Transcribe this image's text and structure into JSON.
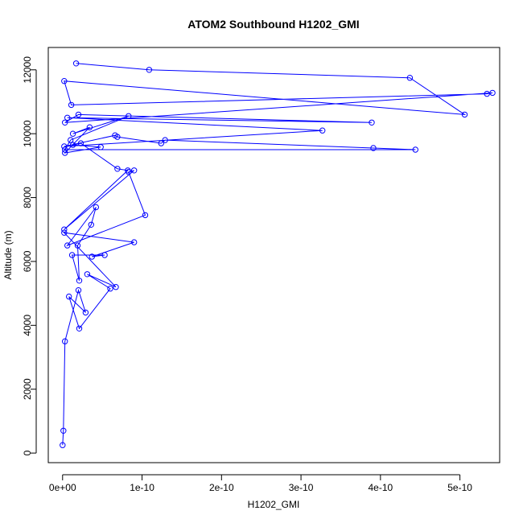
{
  "chart_data": {
    "type": "line",
    "title": "ATOM2 Southbound H1202_GMI",
    "xlabel": "H1202_GMI",
    "ylabel": "Altitude (m)",
    "xlim": [
      -1.8e-11,
      5.5e-10
    ],
    "ylim": [
      -300,
      12700
    ],
    "x_ticks": [
      0,
      1e-10,
      2e-10,
      3e-10,
      4e-10,
      5e-10
    ],
    "x_tick_labels": [
      "0e+00",
      "1e-10",
      "2e-10",
      "3e-10",
      "4e-10",
      "5e-10"
    ],
    "y_ticks": [
      0,
      2000,
      4000,
      6000,
      8000,
      10000,
      12000
    ],
    "y_tick_labels": [
      "0",
      "2000",
      "4000",
      "6000",
      "8000",
      "10000",
      "12000"
    ],
    "grid": false,
    "series": [
      {
        "color": "#0000ff",
        "markers": "open-circle",
        "x": [
          1.7e-11,
          1.09e-10,
          4.37e-10,
          5.06e-10,
          2e-12,
          1.1e-11,
          5.34e-10,
          5.41e-10,
          3e-12,
          2e-11,
          3.89e-10,
          6e-12,
          3.27e-10,
          2e-12,
          6.6e-11,
          6.9e-11,
          1.24e-10,
          1.29e-10,
          3.91e-10,
          4.44e-10,
          3e-12,
          1e-11,
          8.3e-11,
          1.3e-11,
          3.4e-11,
          3e-12,
          4.8e-11,
          1.3e-11,
          2.3e-11,
          6.9e-11,
          8.2e-11,
          2e-12,
          9e-11,
          8.3e-11,
          1.04e-10,
          6e-12,
          4.2e-11,
          3.6e-11,
          1.9e-11,
          2.1e-11,
          1.2e-11,
          5.3e-11,
          3.7e-11,
          9e-11,
          2e-12,
          6.7e-11,
          3.1e-11,
          6e-11,
          2.1e-11,
          8e-12,
          2.9e-11,
          2e-11,
          3e-12,
          1e-12,
          0.0
        ],
        "y": [
          12200,
          12000,
          11750,
          10600,
          11650,
          10900,
          11250,
          11280,
          10350,
          10600,
          10350,
          10500,
          10100,
          9600,
          9950,
          9900,
          9700,
          9800,
          9550,
          9500,
          9500,
          9800,
          10550,
          10000,
          10200,
          9400,
          9580,
          9650,
          9700,
          8900,
          8850,
          7000,
          8850,
          8800,
          7450,
          6500,
          7700,
          7150,
          6500,
          5400,
          6200,
          6200,
          6150,
          6600,
          6900,
          5200,
          5600,
          5150,
          3900,
          4900,
          4400,
          5100,
          3500,
          700,
          250
        ]
      }
    ]
  }
}
